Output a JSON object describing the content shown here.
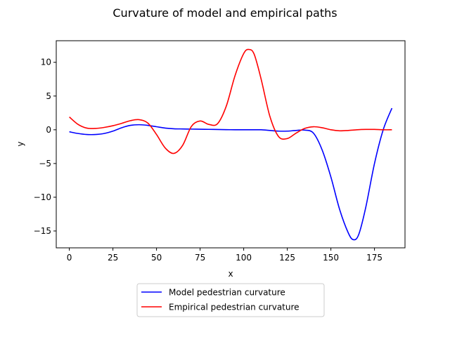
{
  "chart_data": {
    "type": "line",
    "title": "Curvature of model and empirical paths",
    "xlabel": "x",
    "ylabel": "y",
    "xlim": [
      -7.5,
      192.5
    ],
    "ylim": [
      -17.5,
      13.2
    ],
    "xticks": [
      0,
      25,
      50,
      75,
      100,
      125,
      150,
      175
    ],
    "xtick_labels": [
      "0",
      "25",
      "50",
      "75",
      "100",
      "125",
      "150",
      "175"
    ],
    "yticks": [
      -15,
      -10,
      -5,
      0,
      5,
      10
    ],
    "ytick_labels": [
      "−15",
      "−10",
      "−5",
      "0",
      "5",
      "10"
    ],
    "grid": false,
    "legend_position": "below",
    "series": [
      {
        "name": "Model pedestrian curvature",
        "color": "#0000ff",
        "x": [
          0,
          5,
          10,
          15,
          20,
          25,
          30,
          35,
          40,
          45,
          50,
          55,
          60,
          65,
          70,
          75,
          80,
          85,
          90,
          95,
          100,
          105,
          110,
          115,
          120,
          125,
          130,
          135,
          140,
          145,
          150,
          155,
          160,
          163,
          166,
          170,
          175,
          180,
          185
        ],
        "y": [
          -0.3,
          -0.55,
          -0.7,
          -0.7,
          -0.55,
          -0.2,
          0.3,
          0.65,
          0.75,
          0.65,
          0.45,
          0.25,
          0.15,
          0.12,
          0.1,
          0.08,
          0.06,
          0.04,
          0.02,
          0.0,
          0.0,
          0.0,
          0.0,
          -0.1,
          -0.2,
          -0.2,
          -0.1,
          -0.05,
          -0.5,
          -3.0,
          -7.0,
          -11.8,
          -15.3,
          -16.3,
          -15.5,
          -11.5,
          -5.0,
          0.0,
          3.2
        ]
      },
      {
        "name": "Empirical pedestrian curvature",
        "color": "#ff0000",
        "x": [
          0,
          5,
          10,
          15,
          20,
          25,
          30,
          35,
          40,
          45,
          50,
          55,
          60,
          65,
          70,
          75,
          80,
          85,
          90,
          95,
          100,
          103,
          106,
          110,
          115,
          120,
          125,
          130,
          135,
          140,
          145,
          150,
          155,
          160,
          165,
          170,
          175,
          180,
          185
        ],
        "y": [
          1.9,
          0.8,
          0.25,
          0.2,
          0.35,
          0.6,
          0.95,
          1.35,
          1.5,
          1.0,
          -0.7,
          -2.7,
          -3.5,
          -2.3,
          0.5,
          1.3,
          0.8,
          0.9,
          3.5,
          8.0,
          11.3,
          11.9,
          11.2,
          7.5,
          2.0,
          -1.0,
          -1.3,
          -0.5,
          0.2,
          0.45,
          0.3,
          0.0,
          -0.15,
          -0.1,
          0.0,
          0.05,
          0.05,
          0.0,
          0.0
        ]
      }
    ]
  }
}
